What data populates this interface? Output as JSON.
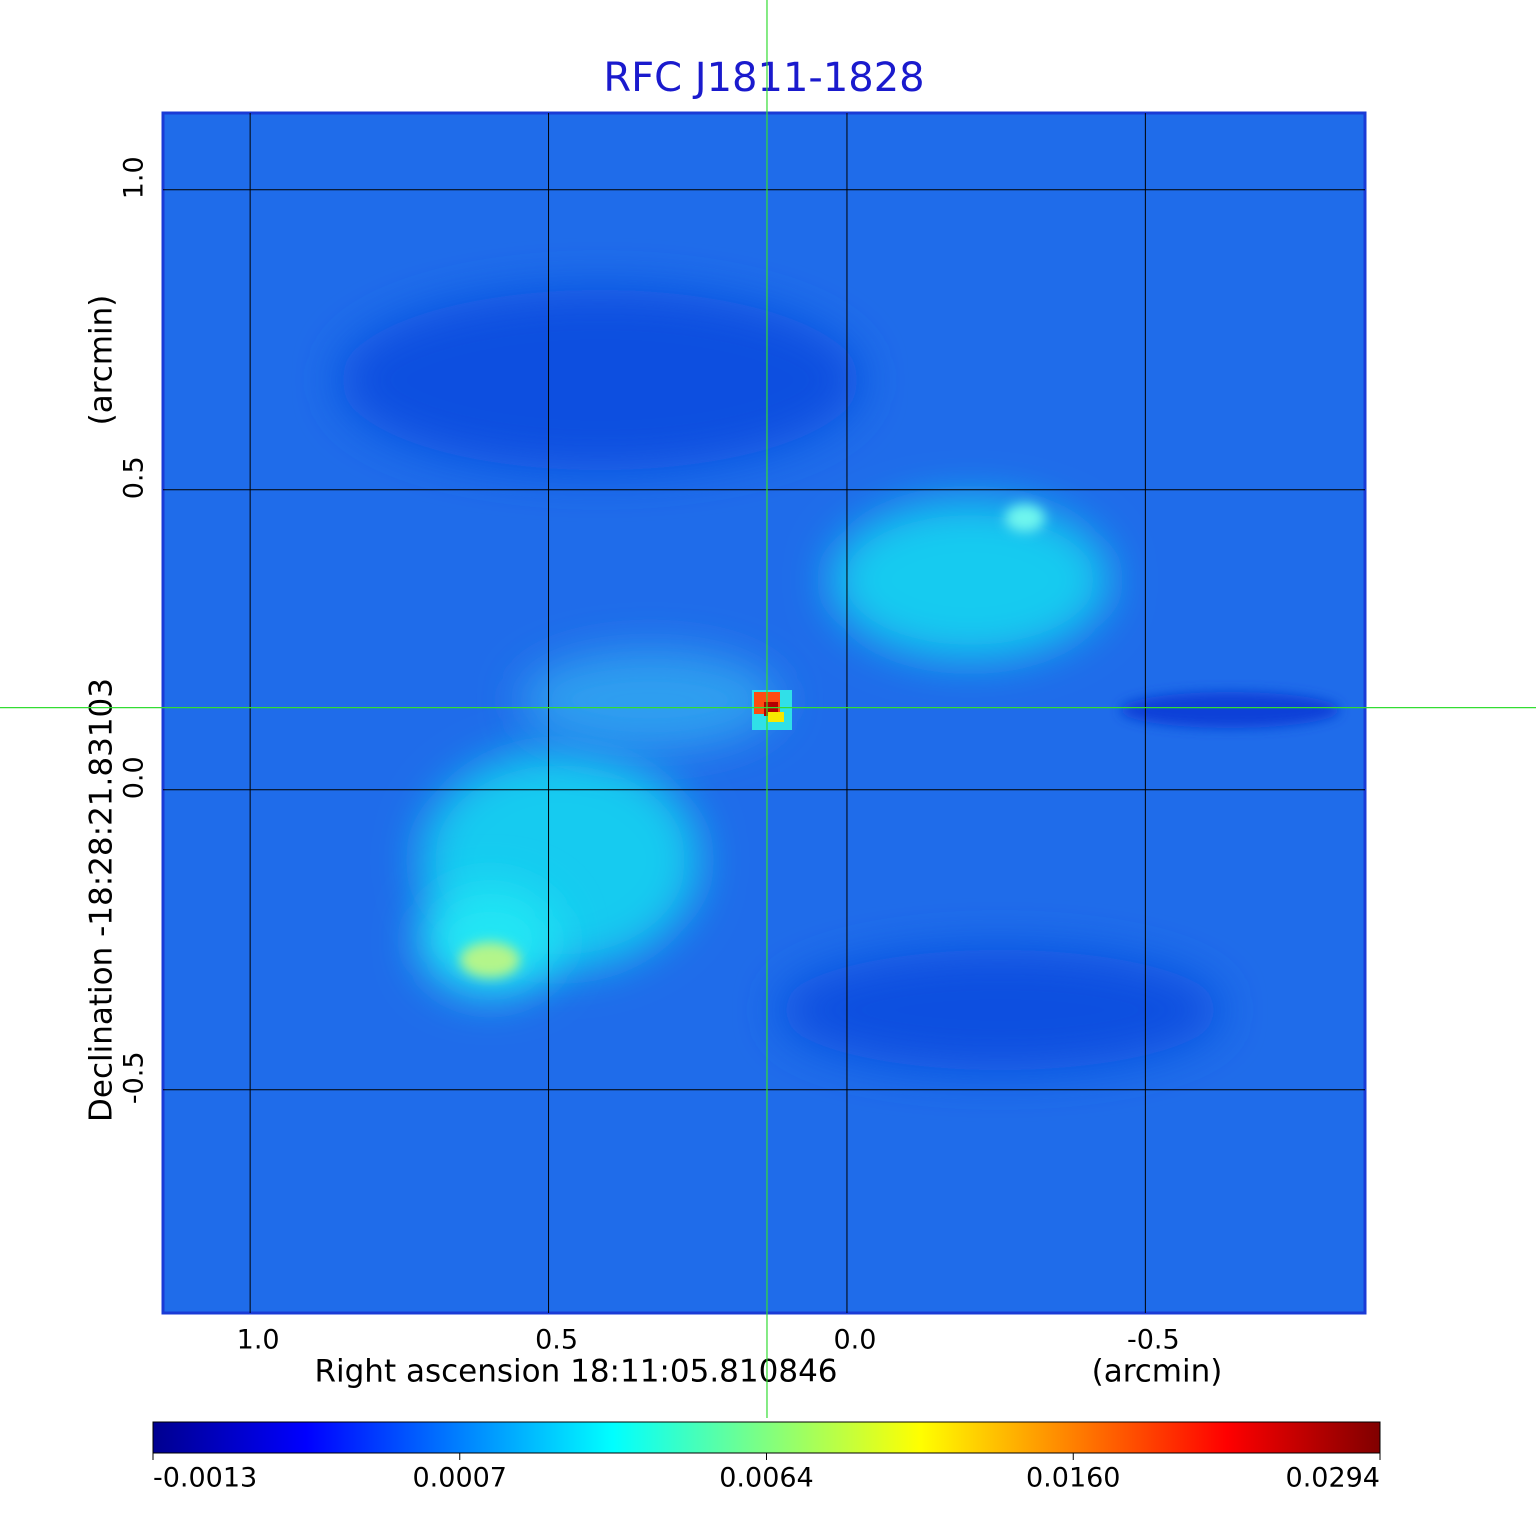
{
  "chart_data": {
    "type": "image",
    "title": "RFC J1811-1828",
    "xlabel": "Right ascension  18:11:05.810846",
    "xunit": "(arcmin)",
    "ylabel": "Declination  -18:28:21.83103",
    "yunit": "(arcmin)",
    "xlim": [
      1.146,
      -0.868
    ],
    "ylim": [
      -0.872,
      1.128
    ],
    "xticks": [
      {
        "value": 1,
        "label": "1.0"
      },
      0.5,
      {
        "value": 0,
        "label": "0.0"
      },
      -0.5
    ],
    "yticks": [
      {
        "value": 1,
        "label": "1.0"
      },
      0.5,
      {
        "value": 0,
        "label": "0.0"
      },
      -0.5
    ],
    "grid": true,
    "crosshair": {
      "x": 0.134,
      "y": 0.137
    },
    "colormap": "jet",
    "colorbar_ticks": [
      -0.0013,
      0.0007,
      0.0064,
      {
        "value": 0.016,
        "label": "0.0160"
      },
      0.0294
    ]
  }
}
